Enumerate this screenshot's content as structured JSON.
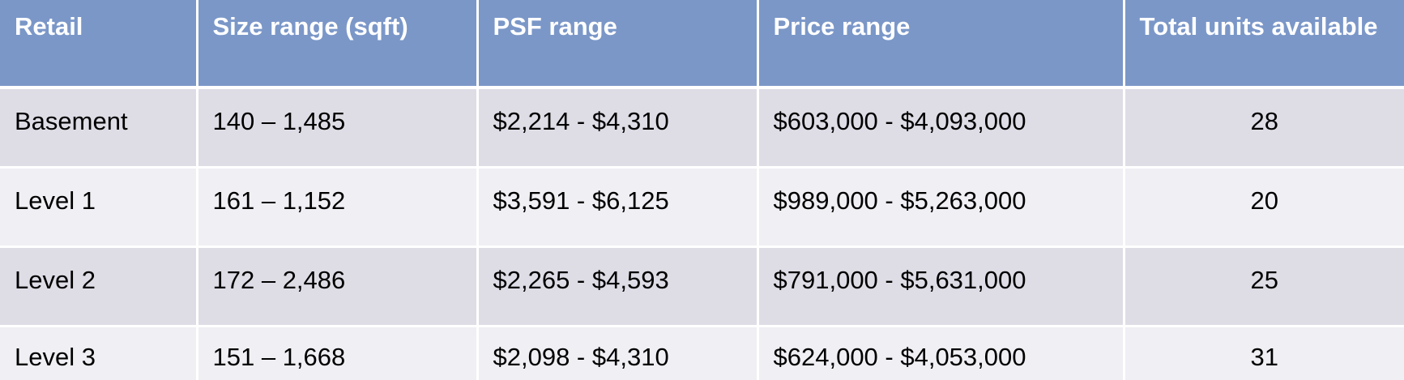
{
  "table": {
    "headers": [
      "Retail",
      "Size range (sqft)",
      "PSF range",
      "Price range",
      "Total units available"
    ],
    "rows": [
      [
        "Basement",
        "140 – 1,485",
        "$2,214 - $4,310",
        "$603,000 - $4,093,000",
        "28"
      ],
      [
        "Level 1",
        "161 – 1,152",
        "$3,591 - $6,125",
        "$989,000 - $5,263,000",
        "20"
      ],
      [
        "Level 2",
        "172 – 2,486",
        "$2,265 - $4,593",
        "$791,000 - $5,631,000",
        "25"
      ],
      [
        "Level 3",
        "151 – 1,668",
        "$2,098 - $4,310",
        "$624,000 - $4,053,000",
        "31"
      ]
    ]
  },
  "colors": {
    "header_bg": "#7b97c8",
    "row_odd_bg": "#dedde6",
    "row_even_bg": "#efeff4"
  }
}
